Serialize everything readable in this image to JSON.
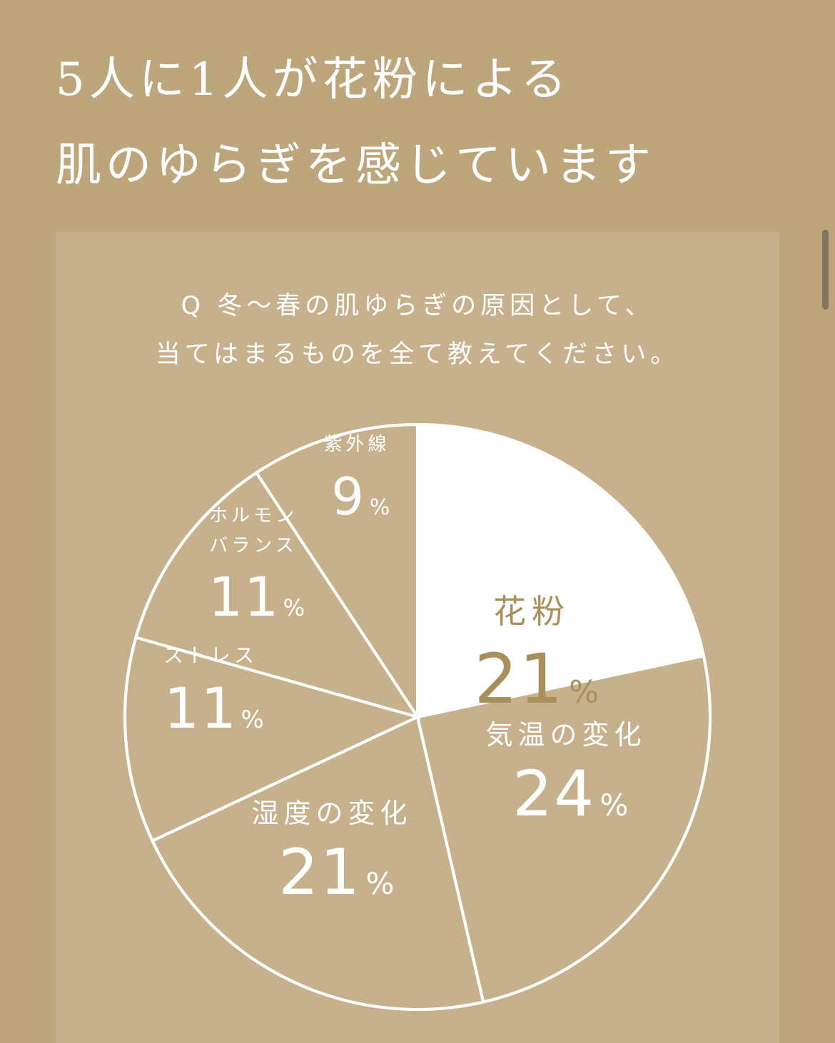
{
  "headline": {
    "line1": "5人に1人が花粉による",
    "line2": "肌のゆらぎを感じています"
  },
  "question": {
    "line1": "Q 冬〜春の肌ゆらぎの原因として、",
    "line2": "当てはまるものを全て教えてください。"
  },
  "colors": {
    "background": "#bea67c",
    "panel": "#c7b08c",
    "highlight_slice": "#ffffff",
    "highlight_text": "#a98f5c",
    "text": "#ffffff"
  },
  "chart_data": {
    "type": "pie",
    "start": "12 o'clock",
    "direction": "clockwise",
    "slices": [
      {
        "label": "花粉",
        "value": 21,
        "display": "21",
        "unit": "%",
        "highlight": true
      },
      {
        "label": "気温の変化",
        "value": 24,
        "display": "24",
        "unit": "%",
        "highlight": false
      },
      {
        "label": "湿度の変化",
        "value": 21,
        "display": "21",
        "unit": "%",
        "highlight": false
      },
      {
        "label": "ストレス",
        "value": 11,
        "display": "11",
        "unit": "%",
        "highlight": false
      },
      {
        "label": "ホルモンバランス",
        "label_lines": [
          "ホルモン",
          "バランス"
        ],
        "value": 11,
        "display": "11",
        "unit": "%",
        "highlight": false
      },
      {
        "label": "紫外線",
        "value": 9,
        "display": "9",
        "unit": "%",
        "highlight": false
      }
    ]
  }
}
